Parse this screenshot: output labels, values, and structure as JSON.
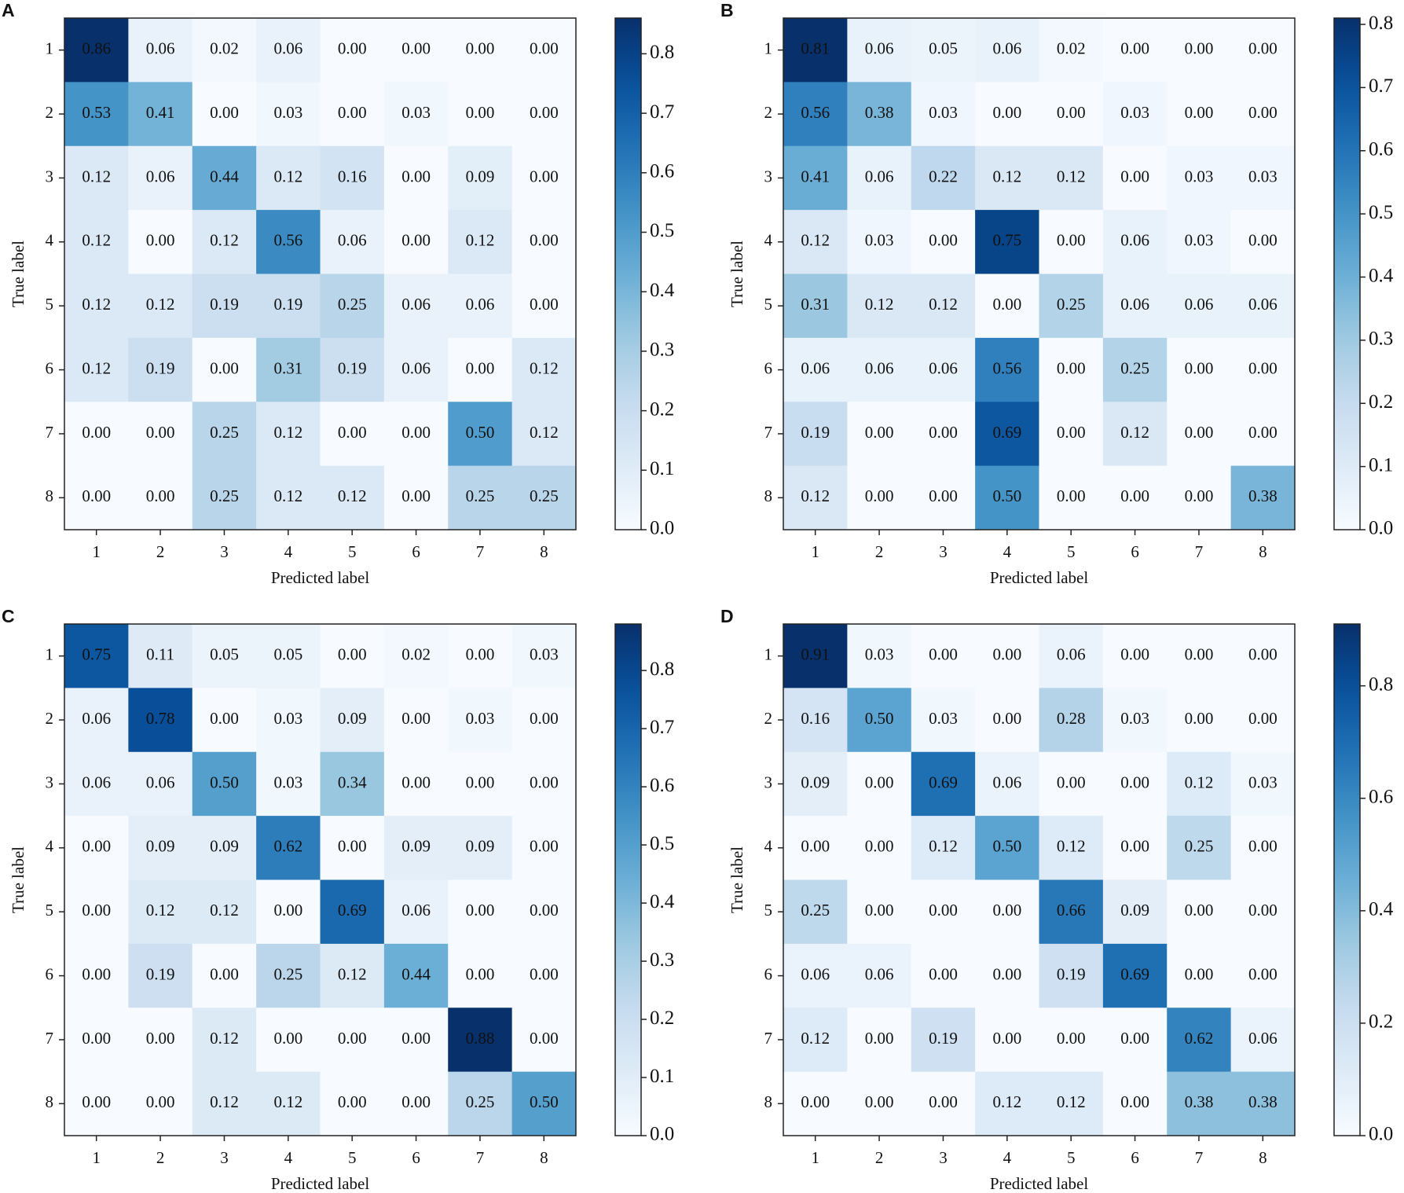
{
  "chart_data": [
    {
      "type": "heatmap",
      "panel": "A",
      "x_label": "Predicted label",
      "y_label": "True label",
      "x": [
        "1",
        "2",
        "3",
        "4",
        "5",
        "6",
        "7",
        "8"
      ],
      "y": [
        "1",
        "2",
        "3",
        "4",
        "5",
        "6",
        "7",
        "8"
      ],
      "cmap": "Blues",
      "zlim": [
        0,
        0.86
      ],
      "zticks": [
        {
          "value": 0,
          "label": "0.0"
        },
        0.1,
        0.2,
        0.3,
        0.4,
        0.5,
        0.6,
        0.7,
        0.8
      ],
      "values": [
        [
          0.86,
          0.06,
          0.02,
          0.06,
          0,
          0,
          0,
          0
        ],
        [
          0.53,
          0.41,
          0,
          0.03,
          0,
          0.03,
          0,
          0
        ],
        [
          0.12,
          0.06,
          0.44,
          0.12,
          0.16,
          0,
          0.09,
          0
        ],
        [
          0.12,
          0,
          0.12,
          0.56,
          0.06,
          0,
          0.12,
          0
        ],
        [
          0.12,
          0.12,
          0.19,
          0.19,
          0.25,
          0.06,
          0.06,
          0
        ],
        [
          0.12,
          0.19,
          0,
          0.31,
          0.19,
          0.06,
          0,
          0.12
        ],
        [
          0,
          0,
          0.25,
          0.12,
          0,
          0,
          0.5,
          0.12
        ],
        [
          0,
          0,
          0.25,
          0.12,
          0.12,
          0,
          0.25,
          0.25
        ]
      ],
      "value_labels": [
        [
          "0.86",
          "0.06",
          "0.02",
          "0.06",
          "0.00",
          "0.00",
          "0.00",
          "0.00"
        ],
        [
          "0.53",
          "0.41",
          "0.00",
          "0.03",
          "0.00",
          "0.03",
          "0.00",
          "0.00"
        ],
        [
          "0.12",
          "0.06",
          "0.44",
          "0.12",
          "0.16",
          "0.00",
          "0.09",
          "0.00"
        ],
        [
          "0.12",
          "0.00",
          "0.12",
          "0.56",
          "0.06",
          "0.00",
          "0.12",
          "0.00"
        ],
        [
          "0.12",
          "0.12",
          "0.19",
          "0.19",
          "0.25",
          "0.06",
          "0.06",
          "0.00"
        ],
        [
          "0.12",
          "0.19",
          "0.00",
          "0.31",
          "0.19",
          "0.06",
          "0.00",
          "0.12"
        ],
        [
          "0.00",
          "0.00",
          "0.25",
          "0.12",
          "0.00",
          "0.00",
          "0.50",
          "0.12"
        ],
        [
          "0.00",
          "0.00",
          "0.25",
          "0.12",
          "0.12",
          "0.00",
          "0.25",
          "0.25"
        ]
      ]
    },
    {
      "type": "heatmap",
      "panel": "B",
      "x_label": "Predicted label",
      "y_label": "True label",
      "x": [
        "1",
        "2",
        "3",
        "4",
        "5",
        "6",
        "7",
        "8"
      ],
      "y": [
        "1",
        "2",
        "3",
        "4",
        "5",
        "6",
        "7",
        "8"
      ],
      "cmap": "Blues",
      "zlim": [
        0,
        0.81
      ],
      "zticks": [
        {
          "value": 0,
          "label": "0.0"
        },
        0.1,
        0.2,
        0.3,
        0.4,
        0.5,
        0.6,
        0.7,
        0.8
      ],
      "values": [
        [
          0.81,
          0.06,
          0.05,
          0.06,
          0.02,
          0,
          0,
          0
        ],
        [
          0.56,
          0.38,
          0.03,
          0,
          0,
          0.03,
          0,
          0
        ],
        [
          0.41,
          0.06,
          0.22,
          0.12,
          0.12,
          0,
          0.03,
          0.03
        ],
        [
          0.12,
          0.03,
          0,
          0.75,
          0,
          0.06,
          0.03,
          0
        ],
        [
          0.31,
          0.12,
          0.12,
          0,
          0.25,
          0.06,
          0.06,
          0.06
        ],
        [
          0.06,
          0.06,
          0.06,
          0.56,
          0,
          0.25,
          0,
          0
        ],
        [
          0.19,
          0,
          0,
          0.69,
          0,
          0.12,
          0,
          0
        ],
        [
          0.12,
          0,
          0,
          0.5,
          0,
          0,
          0,
          0.38
        ]
      ],
      "value_labels": [
        [
          "0.81",
          "0.06",
          "0.05",
          "0.06",
          "0.02",
          "0.00",
          "0.00",
          "0.00"
        ],
        [
          "0.56",
          "0.38",
          "0.03",
          "0.00",
          "0.00",
          "0.03",
          "0.00",
          "0.00"
        ],
        [
          "0.41",
          "0.06",
          "0.22",
          "0.12",
          "0.12",
          "0.00",
          "0.03",
          "0.03"
        ],
        [
          "0.12",
          "0.03",
          "0.00",
          "0.75",
          "0.00",
          "0.06",
          "0.03",
          "0.00"
        ],
        [
          "0.31",
          "0.12",
          "0.12",
          "0.00",
          "0.25",
          "0.06",
          "0.06",
          "0.06"
        ],
        [
          "0.06",
          "0.06",
          "0.06",
          "0.56",
          "0.00",
          "0.25",
          "0.00",
          "0.00"
        ],
        [
          "0.19",
          "0.00",
          "0.00",
          "0.69",
          "0.00",
          "0.12",
          "0.00",
          "0.00"
        ],
        [
          "0.12",
          "0.00",
          "0.00",
          "0.50",
          "0.00",
          "0.00",
          "0.00",
          "0.38"
        ]
      ]
    },
    {
      "type": "heatmap",
      "panel": "C",
      "x_label": "Predicted label",
      "y_label": "True label",
      "x": [
        "1",
        "2",
        "3",
        "4",
        "5",
        "6",
        "7",
        "8"
      ],
      "y": [
        "1",
        "2",
        "3",
        "4",
        "5",
        "6",
        "7",
        "8"
      ],
      "cmap": "Blues",
      "zlim": [
        0,
        0.88
      ],
      "zticks": [
        {
          "value": 0,
          "label": "0.0"
        },
        0.1,
        0.2,
        0.3,
        0.4,
        0.5,
        0.6,
        0.7,
        0.8
      ],
      "values": [
        [
          0.75,
          0.11,
          0.05,
          0.05,
          0,
          0.02,
          0,
          0.03
        ],
        [
          0.06,
          0.78,
          0,
          0.03,
          0.09,
          0,
          0.03,
          0
        ],
        [
          0.06,
          0.06,
          0.5,
          0.03,
          0.34,
          0,
          0,
          0
        ],
        [
          0,
          0.09,
          0.09,
          0.62,
          0,
          0.09,
          0.09,
          0
        ],
        [
          0,
          0.12,
          0.12,
          0,
          0.69,
          0.06,
          0,
          0
        ],
        [
          0,
          0.19,
          0,
          0.25,
          0.12,
          0.44,
          0,
          0
        ],
        [
          0,
          0,
          0.12,
          0,
          0,
          0,
          0.88,
          0
        ],
        [
          0,
          0,
          0.12,
          0.12,
          0,
          0,
          0.25,
          0.5
        ]
      ],
      "value_labels": [
        [
          "0.75",
          "0.11",
          "0.05",
          "0.05",
          "0.00",
          "0.02",
          "0.00",
          "0.03"
        ],
        [
          "0.06",
          "0.78",
          "0.00",
          "0.03",
          "0.09",
          "0.00",
          "0.03",
          "0.00"
        ],
        [
          "0.06",
          "0.06",
          "0.50",
          "0.03",
          "0.34",
          "0.00",
          "0.00",
          "0.00"
        ],
        [
          "0.00",
          "0.09",
          "0.09",
          "0.62",
          "0.00",
          "0.09",
          "0.09",
          "0.00"
        ],
        [
          "0.00",
          "0.12",
          "0.12",
          "0.00",
          "0.69",
          "0.06",
          "0.00",
          "0.00"
        ],
        [
          "0.00",
          "0.19",
          "0.00",
          "0.25",
          "0.12",
          "0.44",
          "0.00",
          "0.00"
        ],
        [
          "0.00",
          "0.00",
          "0.12",
          "0.00",
          "0.00",
          "0.00",
          "0.88",
          "0.00"
        ],
        [
          "0.00",
          "0.00",
          "0.12",
          "0.12",
          "0.00",
          "0.00",
          "0.25",
          "0.50"
        ]
      ]
    },
    {
      "type": "heatmap",
      "panel": "D",
      "x_label": "Predicted label",
      "y_label": "True label",
      "x": [
        "1",
        "2",
        "3",
        "4",
        "5",
        "6",
        "7",
        "8"
      ],
      "y": [
        "1",
        "2",
        "3",
        "4",
        "5",
        "6",
        "7",
        "8"
      ],
      "cmap": "Blues",
      "zlim": [
        0,
        0.91
      ],
      "zticks": [
        {
          "value": 0,
          "label": "0.0"
        },
        0.2,
        0.4,
        0.6,
        0.8
      ],
      "values": [
        [
          0.91,
          0.03,
          0,
          0,
          0.06,
          0,
          0,
          0
        ],
        [
          0.16,
          0.5,
          0.03,
          0,
          0.28,
          0.03,
          0,
          0
        ],
        [
          0.09,
          0,
          0.69,
          0.06,
          0,
          0,
          0.12,
          0.03
        ],
        [
          0,
          0,
          0.12,
          0.5,
          0.12,
          0,
          0.25,
          0
        ],
        [
          0.25,
          0,
          0,
          0,
          0.66,
          0.09,
          0,
          0
        ],
        [
          0.06,
          0.06,
          0,
          0,
          0.19,
          0.69,
          0,
          0
        ],
        [
          0.12,
          0,
          0.19,
          0,
          0,
          0,
          0.62,
          0.06
        ],
        [
          0,
          0,
          0,
          0.12,
          0.12,
          0,
          0.38,
          0.38
        ]
      ],
      "value_labels": [
        [
          "0.91",
          "0.03",
          "0.00",
          "0.00",
          "0.06",
          "0.00",
          "0.00",
          "0.00"
        ],
        [
          "0.16",
          "0.50",
          "0.03",
          "0.00",
          "0.28",
          "0.03",
          "0.00",
          "0.00"
        ],
        [
          "0.09",
          "0.00",
          "0.69",
          "0.06",
          "0.00",
          "0.00",
          "0.12",
          "0.03"
        ],
        [
          "0.00",
          "0.00",
          "0.12",
          "0.50",
          "0.12",
          "0.00",
          "0.25",
          "0.00"
        ],
        [
          "0.25",
          "0.00",
          "0.00",
          "0.00",
          "0.66",
          "0.09",
          "0.00",
          "0.00"
        ],
        [
          "0.06",
          "0.06",
          "0.00",
          "0.00",
          "0.19",
          "0.69",
          "0.00",
          "0.00"
        ],
        [
          "0.12",
          "0.00",
          "0.19",
          "0.00",
          "0.00",
          "0.00",
          "0.62",
          "0.06"
        ],
        [
          "0.00",
          "0.00",
          "0.00",
          "0.12",
          "0.12",
          "0.00",
          "0.38",
          "0.38"
        ]
      ]
    }
  ]
}
